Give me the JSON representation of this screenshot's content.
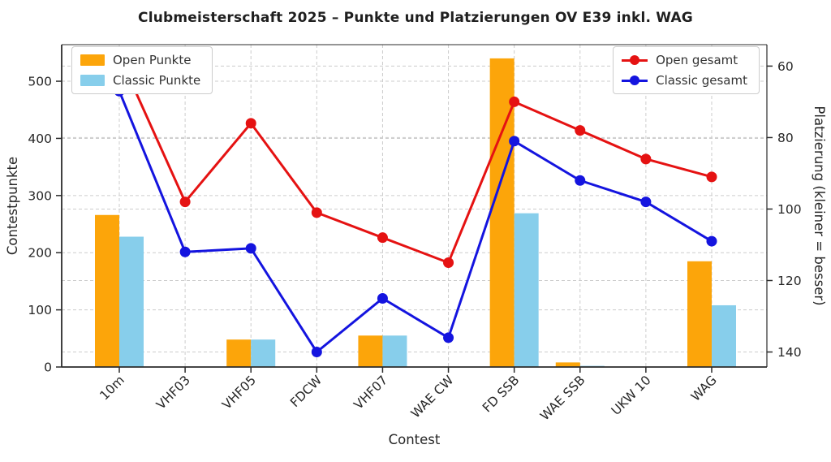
{
  "title": "Clubmeisterschaft 2025 – Punkte und Platzierungen OV E39 inkl. WAG",
  "chart_data": {
    "type": "bar+line (dual axis)",
    "categories": [
      "10m",
      "VHF03",
      "VHF05",
      "FDCW",
      "VHF07",
      "WAE CW",
      "FD SSB",
      "WAE SSB",
      "UKW 10",
      "WAG"
    ],
    "xlabel": "Contest",
    "left_axis": {
      "label": "Contestpunkte",
      "ticks": [
        0,
        100,
        200,
        300,
        400,
        500
      ],
      "ylim": [
        0,
        564
      ]
    },
    "right_axis": {
      "label": "Platzierung (kleiner = besser)",
      "ticks": [
        60,
        80,
        100,
        120,
        140
      ],
      "ylim": [
        54,
        144.2
      ],
      "inverted": true
    },
    "bar_series": [
      {
        "name": "Open Punkte",
        "color": "#FCA50A",
        "values": [
          266,
          0,
          48,
          0,
          55,
          0,
          540,
          8,
          0,
          185
        ]
      },
      {
        "name": "Classic Punkte",
        "color": "#87CEEB",
        "values": [
          228,
          0,
          48,
          0,
          55,
          0,
          269,
          2,
          0,
          108
        ]
      }
    ],
    "line_series": [
      {
        "name": "Open gesamt",
        "color": "#E51212",
        "axis": "right",
        "values": [
          57,
          98,
          76,
          101,
          108,
          115,
          70,
          78,
          86,
          91
        ]
      },
      {
        "name": "Classic gesamt",
        "color": "#1414DF",
        "axis": "right",
        "values": [
          67,
          112,
          111,
          140,
          125,
          136,
          81,
          92,
          98,
          109
        ]
      }
    ],
    "legend_positions": {
      "bars": "upper left",
      "lines": "upper right"
    },
    "grid": "dashed, both axes, vertical per category",
    "colors": {
      "grid": "#cccccc",
      "spine": "#2b2b2b",
      "tick_text": "#262626",
      "title_text": "#1f1f1f"
    }
  }
}
